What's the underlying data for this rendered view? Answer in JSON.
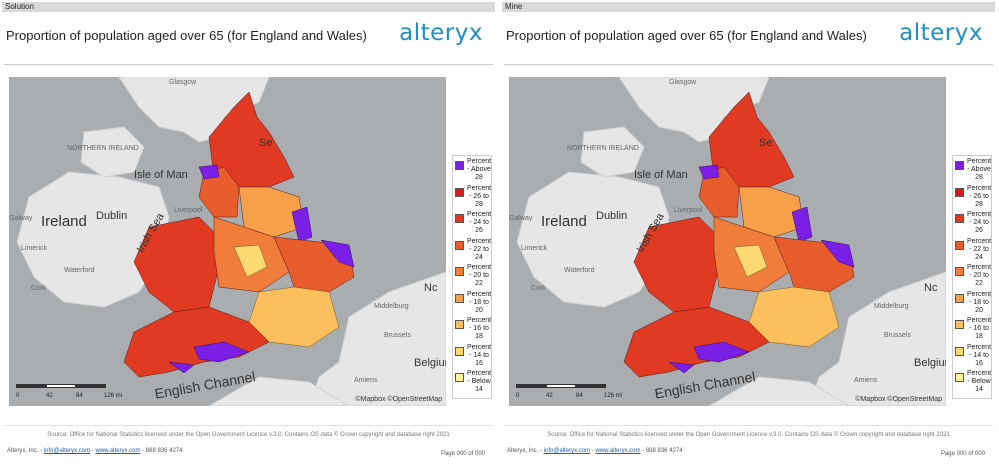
{
  "report": {
    "title": "Proportion of population aged over 65 (for England and Wales)",
    "logo": "alteryx",
    "source": "Source: Office for National Statistics licensed under the Open Government Licence v.3.0. Contains OS data © Crown copyright and database right 2021",
    "company": "Alteryx, Inc. - ",
    "email": "info@alteryx.com",
    "sep": " - ",
    "website": "www.alteryx.com",
    "phone": " - 888 836 4274",
    "page": "Page 000 of 000"
  },
  "panels": [
    {
      "tab": "Solution"
    },
    {
      "tab": "Mine"
    }
  ],
  "map": {
    "attribution": "©Mapbox ©OpenStreetMap",
    "scale_labels": [
      "0",
      "42",
      "84",
      "126 mi"
    ],
    "place_labels": [
      "Glasgow",
      "NORTHERN IRELAND",
      "Isle of Man",
      "Ireland",
      "Dublin",
      "Irish Sea",
      "Liverpool",
      "Galway",
      "Limerick",
      "Waterford",
      "Cork",
      "English Channel",
      "Middelburg",
      "Brussels",
      "Belgium",
      "Amiens",
      "Nc",
      "Se"
    ]
  },
  "legend": [
    {
      "label": "Percent - Above 28",
      "color": "#7b1fe6"
    },
    {
      "label": "Percent - 26 to 28",
      "color": "#d7191c"
    },
    {
      "label": "Percent - 24 to 26",
      "color": "#e03a22"
    },
    {
      "label": "Percent - 22 to 24",
      "color": "#e85d2b"
    },
    {
      "label": "Percent - 20 to 22",
      "color": "#f07e3a"
    },
    {
      "label": "Percent - 18 to 20",
      "color": "#f6a04a"
    },
    {
      "label": "Percent - 16 to 18",
      "color": "#fbbf5e"
    },
    {
      "label": "Percent - 14 to 16",
      "color": "#fdd873"
    },
    {
      "label": "Percent - Below 14",
      "color": "#fff59a"
    }
  ]
}
